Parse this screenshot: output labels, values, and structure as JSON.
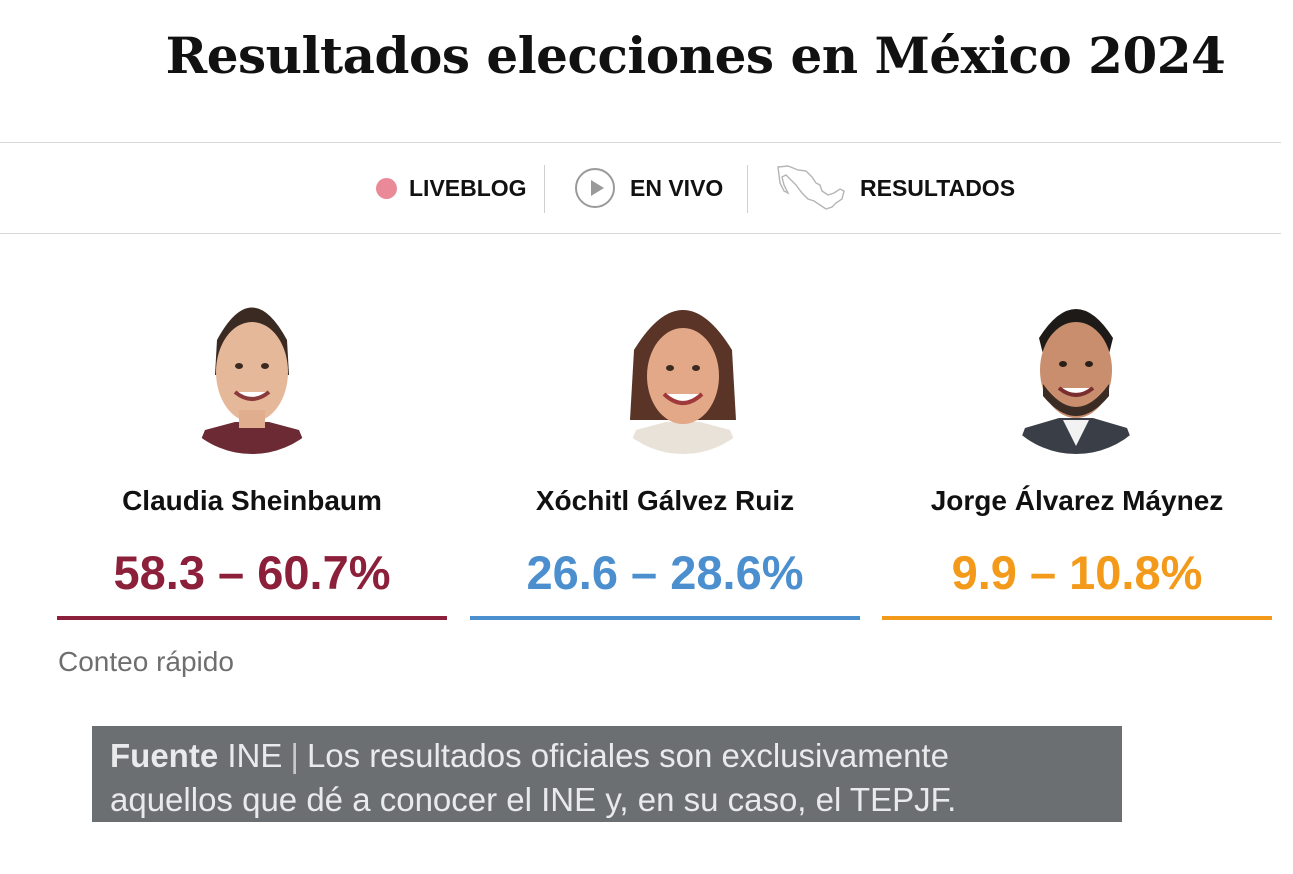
{
  "page": {
    "title": "Resultados elecciones en México 2024"
  },
  "nav": {
    "items": [
      {
        "label": "LIVEBLOG",
        "icon": "live-dot-icon",
        "icon_color": "#ea8a98"
      },
      {
        "label": "EN VIVO",
        "icon": "play-icon"
      },
      {
        "label": "RESULTADOS",
        "icon": "mexico-map-icon"
      }
    ]
  },
  "candidates": [
    {
      "name": "Claudia Sheinbaum",
      "range": "58.3 – 60.7%",
      "color": "#8c1f3a"
    },
    {
      "name": "Xóchitl Gálvez Ruiz",
      "range": "26.6 – 28.6%",
      "color": "#4c8fcf"
    },
    {
      "name": "Jorge Álvarez Máynez",
      "range": "9.9 – 10.8%",
      "color": "#f39a1a"
    }
  ],
  "method_label": "Conteo rápido",
  "source": {
    "label": "Fuente",
    "org": "INE",
    "separator": "|",
    "line1": "Los resultados oficiales son exclusivamente",
    "line2": "aquellos que dé a conocer el INE y, en su caso, el TEPJF."
  }
}
